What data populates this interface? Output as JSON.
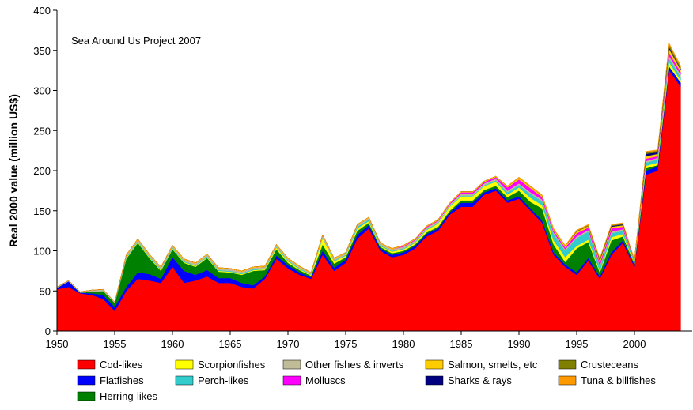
{
  "chart_data": {
    "type": "stacked-area",
    "annotation": "Sea Around Us Project 2007",
    "y_label": "Real 2000 value (million US$)",
    "x": [
      1950,
      1951,
      1952,
      1953,
      1954,
      1955,
      1956,
      1957,
      1958,
      1959,
      1960,
      1961,
      1962,
      1963,
      1964,
      1965,
      1966,
      1967,
      1968,
      1969,
      1970,
      1971,
      1972,
      1973,
      1974,
      1975,
      1976,
      1977,
      1978,
      1979,
      1980,
      1981,
      1982,
      1983,
      1984,
      1985,
      1986,
      1987,
      1988,
      1989,
      1990,
      1991,
      1992,
      1993,
      1994,
      1995,
      1996,
      1997,
      1998,
      1999,
      2000,
      2001,
      2002,
      2003,
      2004
    ],
    "xlim": [
      1950,
      2005
    ],
    "xticks": [
      1950,
      1955,
      1960,
      1965,
      1970,
      1975,
      1980,
      1985,
      1990,
      1995,
      2000
    ],
    "ylim": [
      0,
      400
    ],
    "yticks": [
      0,
      50,
      100,
      150,
      200,
      250,
      300,
      350,
      400
    ],
    "series": [
      {
        "name": "Cod-likes",
        "color": "#ff0000",
        "values": [
          52,
          55,
          47,
          45,
          40,
          25,
          50,
          65,
          63,
          60,
          80,
          60,
          63,
          68,
          60,
          60,
          55,
          53,
          65,
          90,
          78,
          70,
          65,
          95,
          75,
          85,
          115,
          128,
          100,
          92,
          95,
          103,
          118,
          125,
          145,
          155,
          155,
          170,
          175,
          160,
          165,
          150,
          135,
          95,
          80,
          70,
          88,
          65,
          95,
          110,
          80,
          195,
          200,
          325,
          305
        ]
      },
      {
        "name": "Flatfishes",
        "color": "#0000ff",
        "values": [
          2,
          7,
          1,
          2,
          5,
          5,
          5,
          8,
          8,
          5,
          12,
          15,
          7,
          8,
          6,
          6,
          5,
          4,
          3,
          4,
          4,
          3,
          2,
          5,
          4,
          4,
          5,
          4,
          3,
          3,
          3,
          3,
          3,
          3,
          3,
          5,
          5,
          3,
          3,
          3,
          3,
          3,
          3,
          3,
          3,
          3,
          3,
          3,
          3,
          3,
          2,
          5,
          5,
          5,
          5
        ]
      },
      {
        "name": "Herring-likes",
        "color": "#008000",
        "values": [
          0,
          0,
          0,
          2,
          5,
          5,
          35,
          37,
          20,
          10,
          10,
          10,
          10,
          15,
          8,
          7,
          10,
          18,
          8,
          8,
          3,
          3,
          2,
          8,
          5,
          3,
          5,
          3,
          2,
          2,
          2,
          2,
          2,
          2,
          2,
          3,
          3,
          3,
          3,
          4,
          7,
          8,
          15,
          10,
          3,
          30,
          20,
          5,
          15,
          5,
          2,
          3,
          2,
          0,
          0
        ]
      },
      {
        "name": "Scorpionfishes",
        "color": "#ffff00",
        "values": [
          0,
          0,
          0,
          0,
          0,
          0,
          1,
          1,
          1,
          1,
          1,
          1,
          1,
          1,
          1,
          1,
          1,
          1,
          1,
          2,
          2,
          1,
          1,
          8,
          3,
          2,
          3,
          2,
          1,
          2,
          2,
          2,
          3,
          4,
          5,
          5,
          5,
          5,
          5,
          3,
          4,
          5,
          4,
          5,
          6,
          3,
          3,
          2,
          4,
          3,
          1,
          3,
          3,
          5,
          3
        ]
      },
      {
        "name": "Perch-likes",
        "color": "#33cccc",
        "values": [
          0,
          0,
          0,
          0,
          0,
          0,
          1,
          1,
          1,
          1,
          1,
          1,
          1,
          1,
          1,
          1,
          1,
          1,
          1,
          1,
          1,
          1,
          1,
          1,
          1,
          1,
          2,
          2,
          1,
          1,
          1,
          1,
          1,
          1,
          1,
          1,
          1,
          1,
          2,
          3,
          3,
          5,
          5,
          8,
          8,
          10,
          10,
          5,
          5,
          4,
          2,
          4,
          4,
          5,
          4
        ]
      },
      {
        "name": "Other fishes & inverts",
        "color": "#c0bc98",
        "values": [
          1,
          1,
          1,
          2,
          2,
          1,
          2,
          2,
          2,
          2,
          2,
          2,
          2,
          2,
          2,
          2,
          2,
          2,
          2,
          2,
          2,
          2,
          1,
          2,
          2,
          2,
          2,
          2,
          2,
          2,
          2,
          2,
          2,
          2,
          2,
          2,
          2,
          2,
          2,
          2,
          2,
          2,
          2,
          2,
          2,
          2,
          2,
          2,
          2,
          2,
          1,
          2,
          2,
          3,
          3
        ]
      },
      {
        "name": "Molluscs",
        "color": "#ff00ff",
        "values": [
          0,
          0,
          0,
          0,
          0,
          0,
          0,
          0,
          0,
          0,
          0,
          0,
          0,
          0,
          0,
          0,
          0,
          0,
          0,
          0,
          0,
          0,
          0,
          0,
          0,
          0,
          0,
          0,
          0,
          0,
          1,
          1,
          1,
          1,
          1,
          2,
          2,
          2,
          2,
          4,
          5,
          5,
          3,
          2,
          2,
          4,
          3,
          3,
          4,
          3,
          0,
          3,
          2,
          4,
          3
        ]
      },
      {
        "name": "Salmon, smelts, etc",
        "color": "#ffcc00",
        "values": [
          0,
          0,
          0,
          0,
          0,
          0,
          1,
          1,
          1,
          1,
          1,
          1,
          1,
          1,
          1,
          1,
          1,
          1,
          1,
          1,
          1,
          1,
          1,
          1,
          1,
          1,
          1,
          1,
          1,
          1,
          1,
          1,
          1,
          1,
          1,
          1,
          1,
          1,
          1,
          1,
          2,
          2,
          2,
          2,
          2,
          2,
          2,
          3,
          2,
          2,
          1,
          3,
          3,
          5,
          3
        ]
      },
      {
        "name": "Sharks & rays",
        "color": "#000080",
        "values": [
          0,
          0,
          0,
          0,
          0,
          0,
          0,
          0,
          0,
          0,
          0,
          0,
          0,
          0,
          0,
          0,
          0,
          0,
          0,
          0,
          0,
          0,
          0,
          0,
          0,
          0,
          0,
          0,
          0,
          0,
          0,
          0,
          0,
          0,
          0,
          0,
          0,
          0,
          0,
          0,
          0,
          0,
          0,
          0,
          0,
          0,
          0,
          1,
          1,
          1,
          0,
          3,
          2,
          2,
          1
        ]
      },
      {
        "name": "Crusteceans",
        "color": "#808000",
        "values": [
          0,
          0,
          0,
          0,
          0,
          0,
          0,
          0,
          0,
          0,
          0,
          0,
          0,
          0,
          0,
          0,
          0,
          0,
          0,
          0,
          0,
          0,
          0,
          0,
          0,
          0,
          0,
          0,
          0,
          0,
          0,
          0,
          0,
          0,
          0,
          0,
          0,
          0,
          0,
          0,
          0,
          0,
          0,
          0,
          0,
          1,
          1,
          1,
          1,
          1,
          0,
          2,
          2,
          3,
          2
        ]
      },
      {
        "name": "Tuna & billfishes",
        "color": "#ff9900",
        "values": [
          0,
          0,
          0,
          0,
          0,
          0,
          0,
          0,
          0,
          0,
          0,
          0,
          0,
          0,
          0,
          0,
          0,
          0,
          0,
          0,
          0,
          0,
          0,
          0,
          0,
          0,
          0,
          0,
          0,
          0,
          0,
          0,
          0,
          0,
          0,
          0,
          0,
          0,
          0,
          1,
          1,
          1,
          1,
          1,
          1,
          1,
          1,
          1,
          1,
          1,
          0,
          1,
          1,
          2,
          2
        ]
      }
    ]
  }
}
